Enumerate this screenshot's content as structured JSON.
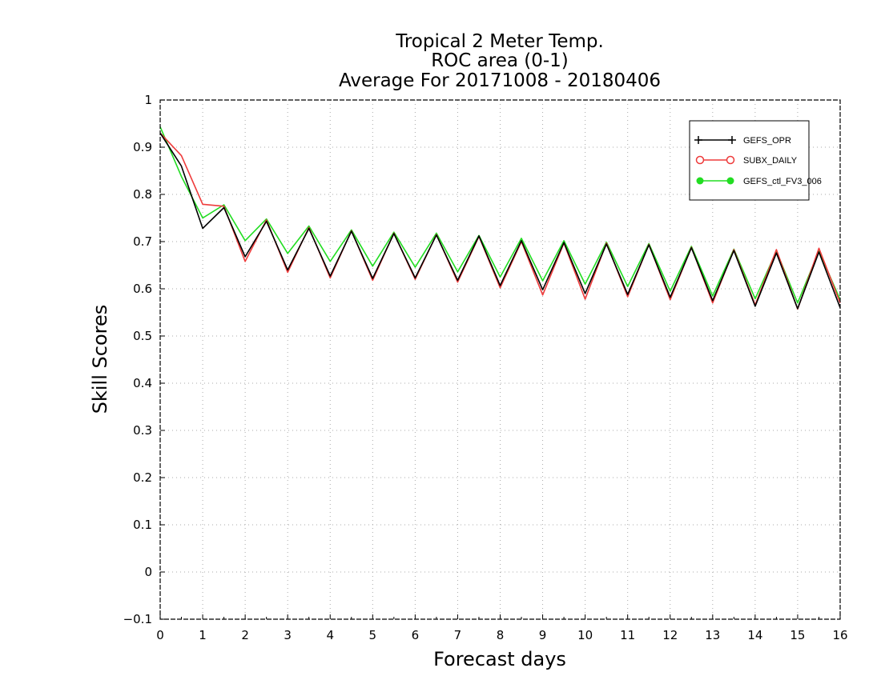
{
  "chart_data": {
    "type": "line",
    "title": [
      "Tropical 2 Meter Temp.",
      "ROC area (0-1)",
      "Average For 20171008 - 20180406"
    ],
    "xlabel": "Forecast days",
    "ylabel": "Skill Scores",
    "xlim": [
      0,
      16
    ],
    "ylim": [
      -0.1,
      1
    ],
    "xticks": [
      0,
      1,
      2,
      3,
      4,
      5,
      6,
      7,
      8,
      9,
      10,
      11,
      12,
      13,
      14,
      15,
      16
    ],
    "yticks": [
      -0.1,
      0,
      0.1,
      0.2,
      0.3,
      0.4,
      0.5,
      0.6,
      0.7,
      0.8,
      0.9,
      1
    ],
    "ytick_labels": [
      "−0.1",
      "0",
      "0.1",
      "0.2",
      "0.3",
      "0.4",
      "0.5",
      "0.6",
      "0.7",
      "0.8",
      "0.9",
      "1"
    ],
    "grid": true,
    "legend_position": "top-right",
    "x": [
      0,
      0.5,
      1,
      1.5,
      2,
      2.5,
      3,
      3.5,
      4,
      4.5,
      5,
      5.5,
      6,
      6.5,
      7,
      7.5,
      8,
      8.5,
      9,
      9.5,
      10,
      10.5,
      11,
      11.5,
      12,
      12.5,
      13,
      13.5,
      14,
      14.5,
      15,
      15.5,
      16
    ],
    "series": [
      {
        "name": "GEFS_OPR",
        "color": "#000000",
        "marker": "plus",
        "values": [
          0.93,
          0.86,
          0.728,
          0.772,
          0.668,
          0.743,
          0.64,
          0.728,
          0.627,
          0.722,
          0.622,
          0.717,
          0.623,
          0.714,
          0.618,
          0.712,
          0.607,
          0.702,
          0.598,
          0.698,
          0.59,
          0.695,
          0.588,
          0.693,
          0.582,
          0.687,
          0.575,
          0.681,
          0.563,
          0.676,
          0.558,
          0.678,
          0.56
        ]
      },
      {
        "name": "SUBX_DAILY",
        "color": "#ee3b3b",
        "marker": "circle",
        "values": [
          0.93,
          0.882,
          0.779,
          0.775,
          0.658,
          0.746,
          0.635,
          0.73,
          0.623,
          0.723,
          0.618,
          0.718,
          0.62,
          0.715,
          0.614,
          0.711,
          0.602,
          0.7,
          0.587,
          0.697,
          0.578,
          0.697,
          0.583,
          0.694,
          0.577,
          0.688,
          0.57,
          0.683,
          0.566,
          0.683,
          0.557,
          0.686,
          0.57
        ]
      },
      {
        "name": "GEFS_ctl_FV3_006",
        "color": "#22dd22",
        "marker": "filled-circle",
        "values": [
          0.943,
          0.838,
          0.75,
          0.778,
          0.702,
          0.748,
          0.675,
          0.733,
          0.658,
          0.725,
          0.648,
          0.72,
          0.646,
          0.718,
          0.636,
          0.713,
          0.625,
          0.707,
          0.617,
          0.702,
          0.61,
          0.699,
          0.605,
          0.696,
          0.595,
          0.69,
          0.585,
          0.684,
          0.579,
          0.68,
          0.57,
          0.68,
          0.577
        ]
      }
    ]
  }
}
